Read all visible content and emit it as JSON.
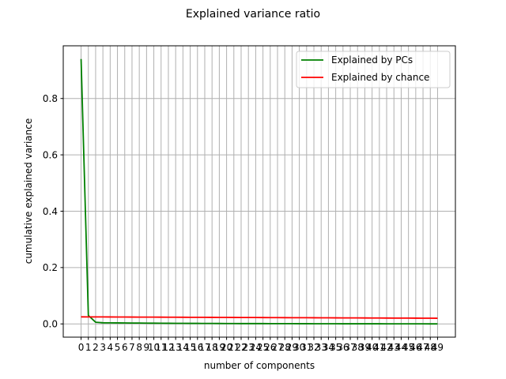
{
  "chart_data": {
    "type": "line",
    "title": "Explained variance ratio",
    "xlabel": "number of components",
    "ylabel": "cumulative explained variance",
    "x": [
      0,
      1,
      2,
      3,
      4,
      5,
      6,
      7,
      8,
      9,
      10,
      11,
      12,
      13,
      14,
      15,
      16,
      17,
      18,
      19,
      20,
      21,
      22,
      23,
      24,
      25,
      26,
      27,
      28,
      29,
      30,
      31,
      32,
      33,
      34,
      35,
      36,
      37,
      38,
      39,
      40,
      41,
      42,
      43,
      44,
      45,
      46,
      47,
      48,
      49
    ],
    "x_ticks": [
      0,
      1,
      2,
      3,
      4,
      5,
      6,
      7,
      8,
      9,
      10,
      11,
      12,
      13,
      14,
      15,
      16,
      17,
      18,
      19,
      20,
      21,
      22,
      23,
      24,
      25,
      26,
      27,
      28,
      29,
      30,
      31,
      32,
      33,
      34,
      35,
      36,
      37,
      38,
      39,
      40,
      41,
      42,
      43,
      44,
      45,
      46,
      47,
      48,
      49
    ],
    "xlim": [
      -2.45,
      51.45
    ],
    "ylim": [
      -0.047,
      0.987
    ],
    "y_ticks": [
      0.0,
      0.2,
      0.4,
      0.6,
      0.8
    ],
    "y_tick_labels": [
      "0.0",
      "0.2",
      "0.4",
      "0.6",
      "0.8"
    ],
    "grid": true,
    "legend_position": "top-right",
    "series": [
      {
        "name": "Explained by PCs",
        "color": "#008000",
        "values": [
          0.94,
          0.03,
          0.006,
          0.004,
          0.0038,
          0.0036,
          0.0034,
          0.0032,
          0.003,
          0.0028,
          0.0026,
          0.0024,
          0.0022,
          0.0021,
          0.002,
          0.0019,
          0.0018,
          0.0017,
          0.0016,
          0.0015,
          0.0014,
          0.0013,
          0.0012,
          0.0012,
          0.0011,
          0.0011,
          0.001,
          0.001,
          0.0009,
          0.0009,
          0.0008,
          0.0008,
          0.0007,
          0.0007,
          0.0006,
          0.0006,
          0.0005,
          0.0005,
          0.0005,
          0.0004,
          0.0004,
          0.0004,
          0.0003,
          0.0003,
          0.0003,
          0.0002,
          0.0002,
          0.0002,
          0.0001,
          0.0001
        ]
      },
      {
        "name": "Explained by chance",
        "color": "#ff0000",
        "values": [
          0.025,
          0.0249,
          0.0248,
          0.0247,
          0.0246,
          0.0245,
          0.0244,
          0.0243,
          0.0242,
          0.0241,
          0.024,
          0.0239,
          0.0238,
          0.0237,
          0.0236,
          0.0235,
          0.0234,
          0.0233,
          0.0232,
          0.0231,
          0.023,
          0.0229,
          0.0228,
          0.0227,
          0.0226,
          0.0225,
          0.0224,
          0.0223,
          0.0222,
          0.0221,
          0.022,
          0.0219,
          0.0218,
          0.0217,
          0.0216,
          0.0215,
          0.0214,
          0.0213,
          0.0212,
          0.0211,
          0.021,
          0.0209,
          0.0208,
          0.0207,
          0.0206,
          0.0205,
          0.0204,
          0.0203,
          0.0202,
          0.0201
        ]
      }
    ]
  }
}
